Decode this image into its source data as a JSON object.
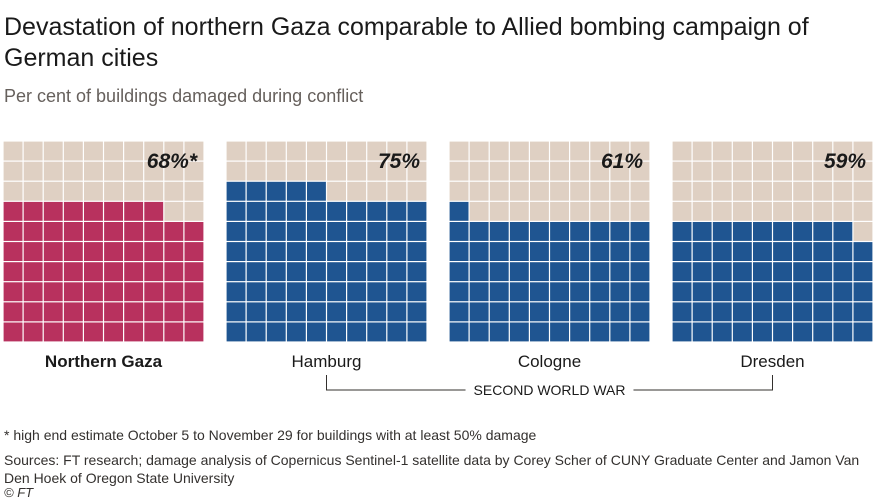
{
  "header": {
    "title": "Devastation of northern Gaza comparable to Allied bombing campaign of German cities",
    "subtitle": "Per cent of buildings damaged during conflict"
  },
  "chart_data": {
    "type": "waffle",
    "grid": {
      "rows": 10,
      "cols": 10
    },
    "units": "per cent of buildings damaged",
    "panels": [
      {
        "name": "Northern Gaza",
        "value": 68,
        "label": "68%*",
        "color": "#b8315e",
        "bold": true
      },
      {
        "name": "Hamburg",
        "value": 75,
        "label": "75%",
        "color": "#1f5591",
        "bold": false
      },
      {
        "name": "Cologne",
        "value": 61,
        "label": "61%",
        "color": "#1f5591",
        "bold": false
      },
      {
        "name": "Dresden",
        "value": 59,
        "label": "59%",
        "color": "#1f5591",
        "bold": false
      }
    ],
    "empty_color": "#dfd0c3",
    "group_annotation": {
      "label": "SECOND WORLD WAR",
      "panels": [
        "Hamburg",
        "Cologne",
        "Dresden"
      ]
    }
  },
  "footer": {
    "footnote": "* high end estimate October 5 to November 29 for buildings with at least 50% damage",
    "sources": "Sources: FT research; damage analysis of Copernicus Sentinel-1 satellite data by Corey Scher of CUNY Graduate Center and Jamon Van Den Hoek of Oregon State University",
    "copyright": "© FT"
  }
}
